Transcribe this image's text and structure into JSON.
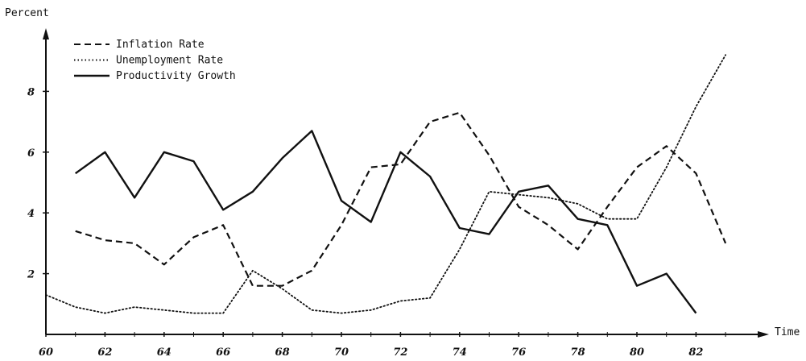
{
  "chart_data": {
    "type": "line",
    "title": "",
    "xlabel": "Time",
    "ylabel": "Percent",
    "xlim": [
      60,
      84
    ],
    "ylim": [
      0,
      10
    ],
    "x_ticks": [
      60,
      62,
      64,
      66,
      68,
      70,
      72,
      74,
      76,
      78,
      80,
      82
    ],
    "y_ticks": [
      2,
      4,
      6,
      8
    ],
    "grid": false,
    "legend_position": "top-left",
    "series": [
      {
        "name": "Inflation Rate",
        "style": "dashed",
        "color": "#111111",
        "x": [
          61,
          62,
          63,
          64,
          65,
          66,
          67,
          68,
          69,
          70,
          71,
          72,
          73,
          74,
          75,
          76,
          77,
          78,
          79,
          80,
          81,
          82,
          83
        ],
        "values": [
          3.4,
          3.1,
          3.0,
          2.3,
          3.2,
          3.6,
          1.6,
          1.6,
          2.1,
          3.6,
          5.5,
          5.6,
          7.0,
          7.3,
          5.9,
          4.2,
          3.6,
          2.8,
          4.2,
          5.5,
          6.2,
          5.3,
          3.0
        ]
      },
      {
        "name": "Unemployment Rate",
        "style": "dotted",
        "color": "#111111",
        "x": [
          60,
          61,
          62,
          63,
          64,
          65,
          66,
          67,
          68,
          69,
          70,
          71,
          72,
          73,
          74,
          75,
          76,
          77,
          78,
          79,
          80,
          81,
          82,
          83
        ],
        "values": [
          1.3,
          0.9,
          0.7,
          0.9,
          0.8,
          0.7,
          0.7,
          2.1,
          1.5,
          0.8,
          0.7,
          0.8,
          1.1,
          1.2,
          2.8,
          4.7,
          4.6,
          4.5,
          4.3,
          3.8,
          3.8,
          5.5,
          7.5,
          9.2
        ]
      },
      {
        "name": "Productivity Growth",
        "style": "solid",
        "color": "#111111",
        "x": [
          61,
          62,
          63,
          64,
          65,
          66,
          67,
          68,
          69,
          70,
          71,
          72,
          73,
          74,
          75,
          76,
          77,
          78,
          79,
          80,
          81,
          82
        ],
        "values": [
          5.3,
          6.0,
          4.5,
          6.0,
          5.7,
          4.1,
          4.7,
          5.8,
          6.7,
          4.4,
          3.7,
          6.0,
          5.2,
          3.5,
          3.3,
          4.7,
          4.9,
          3.8,
          3.6,
          1.6,
          2.0,
          0.7
        ]
      }
    ]
  }
}
